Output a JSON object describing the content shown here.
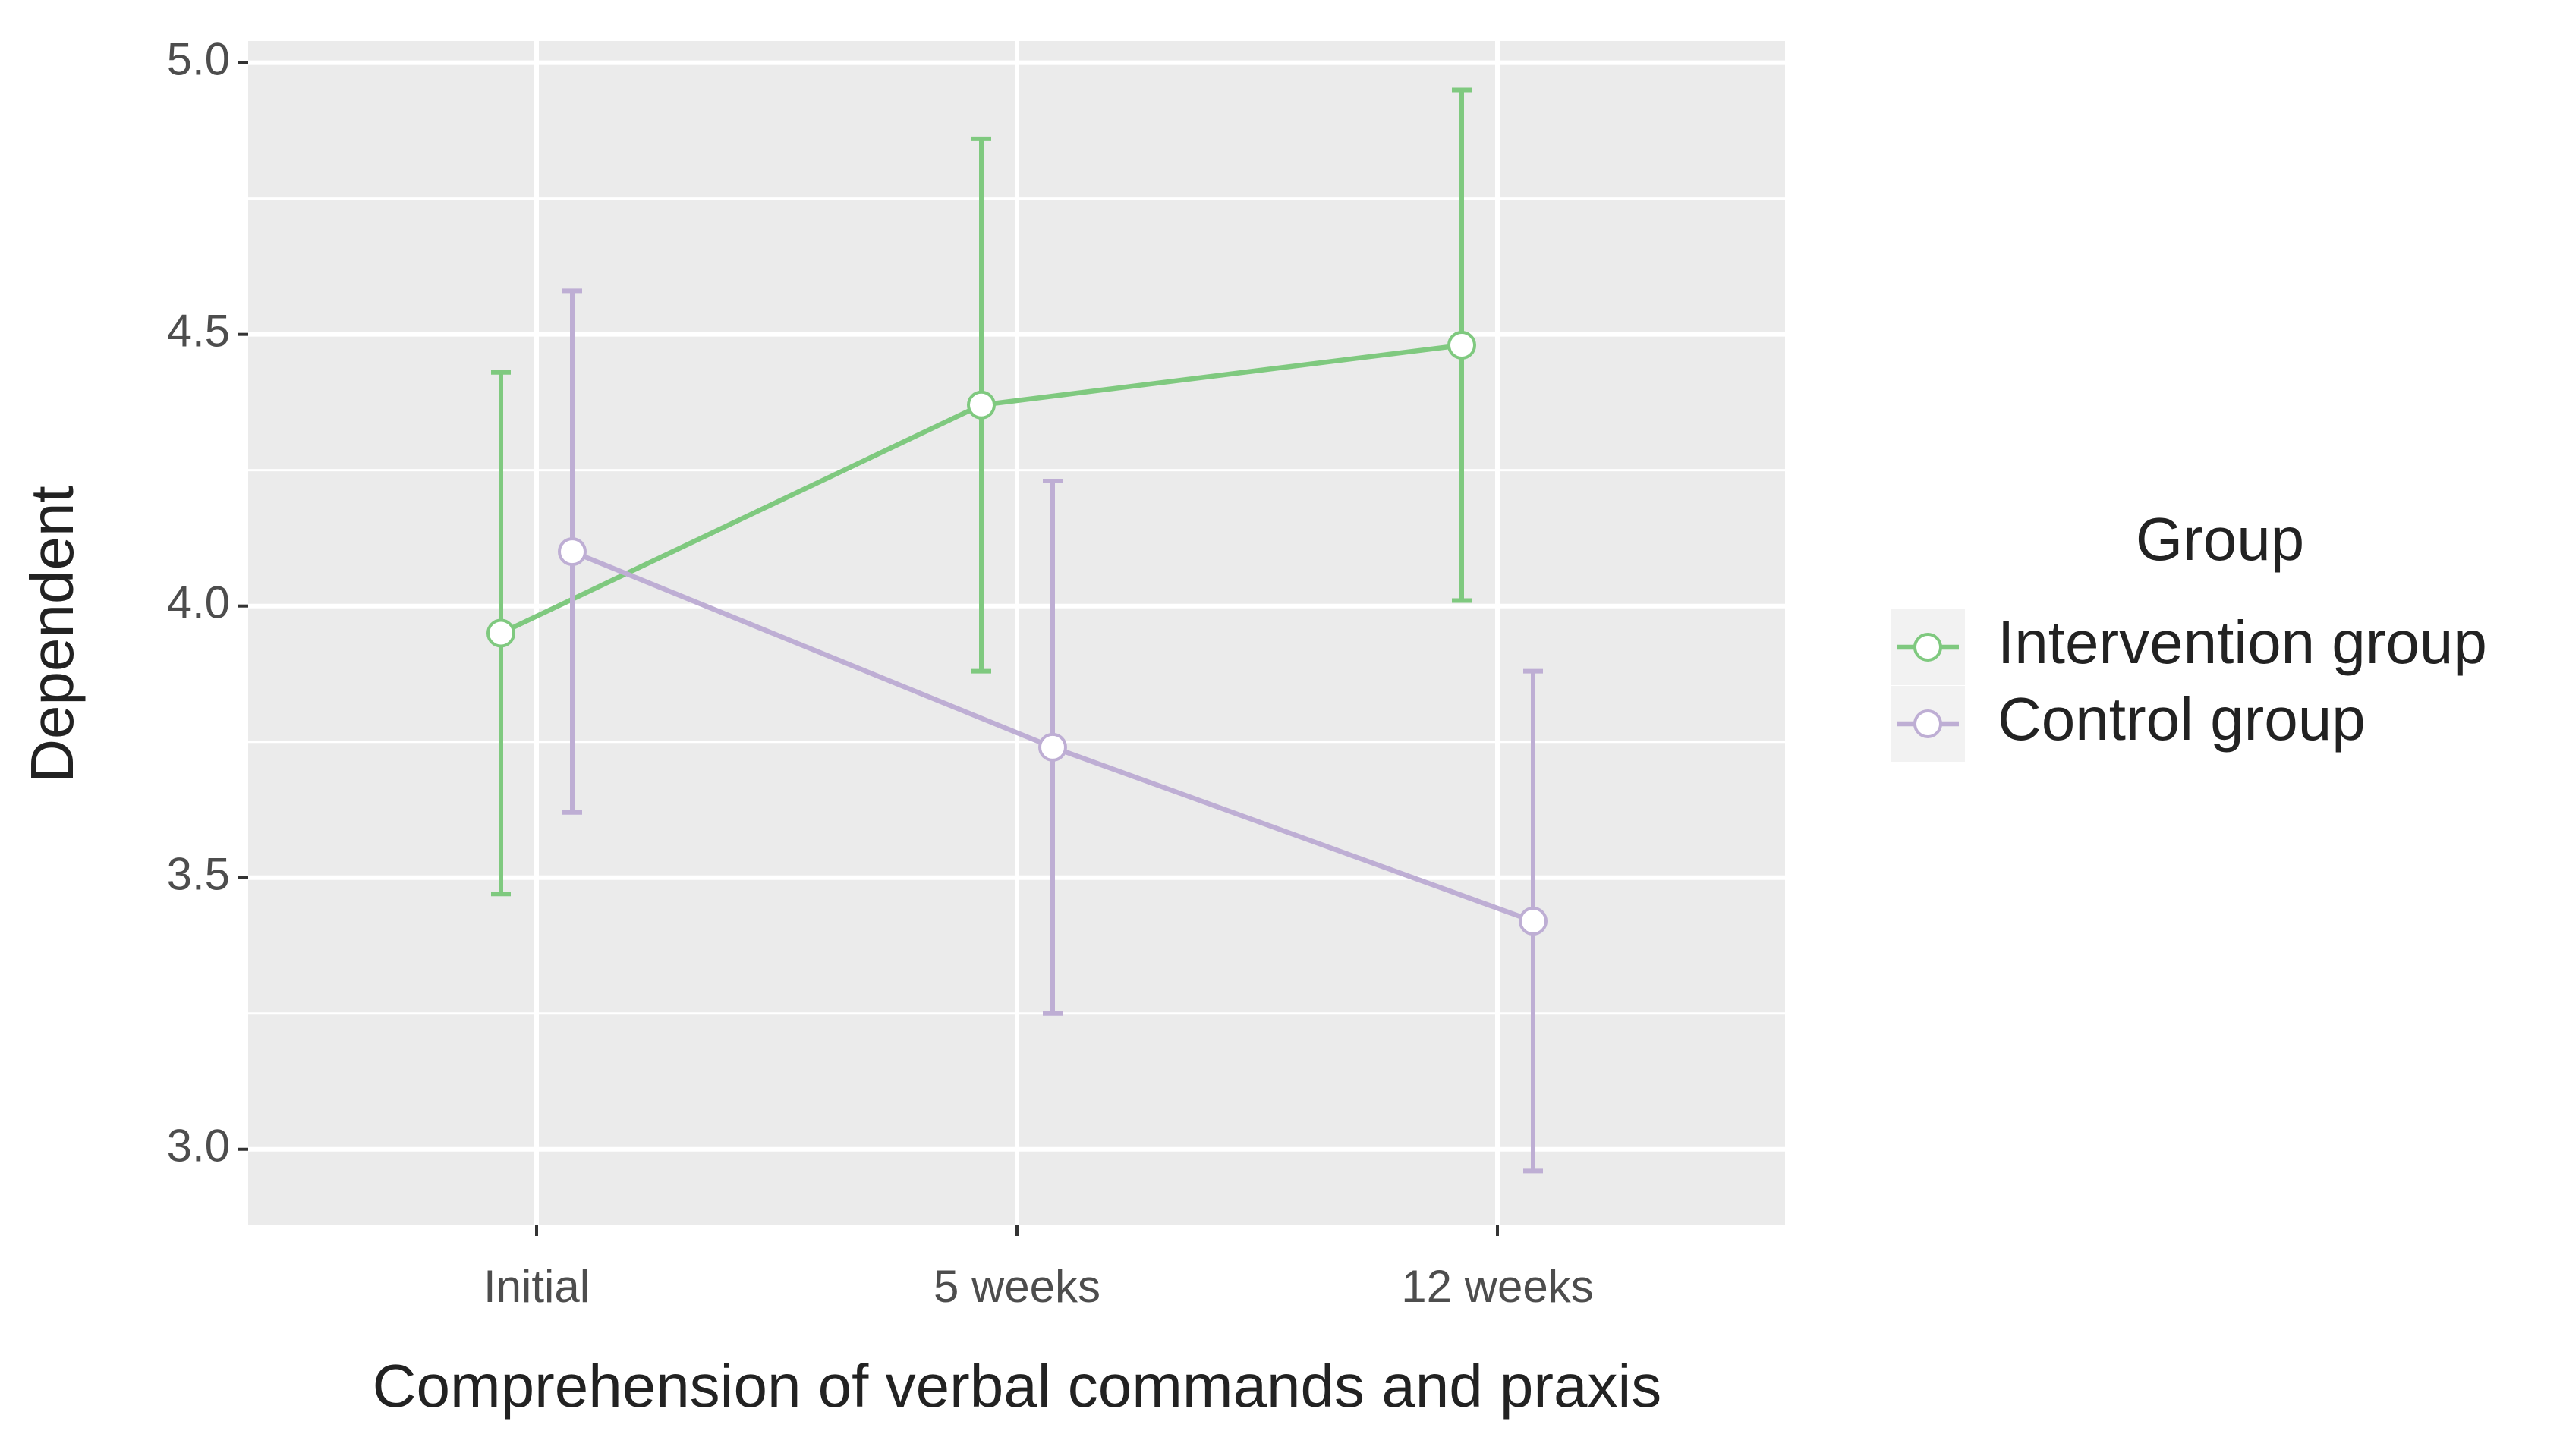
{
  "chart_data": {
    "type": "line",
    "x_label": "Comprehension of verbal commands and praxis",
    "y_label": "Dependent",
    "legend_title": "Group",
    "categories": [
      "Initial",
      "5 weeks",
      "12 weeks"
    ],
    "series": [
      {
        "name": "Intervention group",
        "color": "#7fc97f",
        "values": [
          3.95,
          4.37,
          4.48
        ],
        "errors": [
          0.48,
          0.49,
          0.47
        ]
      },
      {
        "name": "Control group",
        "color": "#beaed4",
        "values": [
          4.1,
          3.74,
          3.42
        ],
        "errors": [
          0.48,
          0.49,
          0.46
        ]
      }
    ],
    "ylim": [
      2.86,
      5.04
    ],
    "yticks": [
      {
        "value": 3.0,
        "label": "3.0"
      },
      {
        "value": 3.5,
        "label": "3.5"
      },
      {
        "value": 4.0,
        "label": "4.0"
      },
      {
        "value": 4.5,
        "label": "4.5"
      },
      {
        "value": 5.0,
        "label": "5.0"
      }
    ],
    "grid": true,
    "legend": "right"
  }
}
